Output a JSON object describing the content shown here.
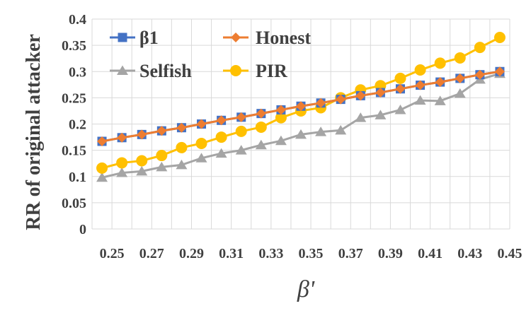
{
  "chart_data": {
    "type": "line",
    "title": "",
    "xlabel": "β'",
    "ylabel": "RR of original attacker",
    "x": [
      0.245,
      0.255,
      0.265,
      0.275,
      0.285,
      0.295,
      0.305,
      0.315,
      0.325,
      0.335,
      0.345,
      0.355,
      0.365,
      0.375,
      0.385,
      0.395,
      0.405,
      0.415,
      0.425,
      0.435,
      0.445
    ],
    "x_tick_labels": [
      "0.25",
      "0.27",
      "0.29",
      "0.31",
      "0.33",
      "0.35",
      "0.37",
      "0.39",
      "0.41",
      "0.43",
      "0.45"
    ],
    "y_tick_labels": [
      "0",
      "0.05",
      "0.1",
      "0.15",
      "0.2",
      "0.25",
      "0.3",
      "0.35",
      "0.4"
    ],
    "ylim": [
      0,
      0.4
    ],
    "grid": true,
    "legend": "top-left",
    "series": [
      {
        "name": "β1",
        "color": "#4472c4",
        "marker": "square",
        "values": [
          0.167,
          0.174,
          0.18,
          0.187,
          0.193,
          0.2,
          0.207,
          0.213,
          0.22,
          0.227,
          0.234,
          0.24,
          0.247,
          0.254,
          0.26,
          0.267,
          0.274,
          0.28,
          0.287,
          0.294,
          0.3
        ]
      },
      {
        "name": "Honest",
        "color": "#ed7d31",
        "marker": "diamond",
        "values": [
          0.167,
          0.174,
          0.18,
          0.187,
          0.193,
          0.2,
          0.207,
          0.213,
          0.22,
          0.227,
          0.234,
          0.24,
          0.247,
          0.254,
          0.26,
          0.267,
          0.274,
          0.28,
          0.287,
          0.294,
          0.3
        ]
      },
      {
        "name": "Selfish",
        "color": "#a5a5a5",
        "marker": "triangle",
        "values": [
          0.098,
          0.107,
          0.11,
          0.118,
          0.122,
          0.135,
          0.144,
          0.15,
          0.16,
          0.168,
          0.18,
          0.185,
          0.188,
          0.212,
          0.217,
          0.227,
          0.245,
          0.244,
          0.258,
          0.285,
          0.296
        ]
      },
      {
        "name": "PIR",
        "color": "#ffc000",
        "marker": "circle",
        "values": [
          0.116,
          0.126,
          0.13,
          0.14,
          0.155,
          0.163,
          0.175,
          0.186,
          0.194,
          0.212,
          0.225,
          0.231,
          0.25,
          0.265,
          0.273,
          0.287,
          0.303,
          0.316,
          0.326,
          0.346,
          0.365
        ]
      }
    ]
  }
}
